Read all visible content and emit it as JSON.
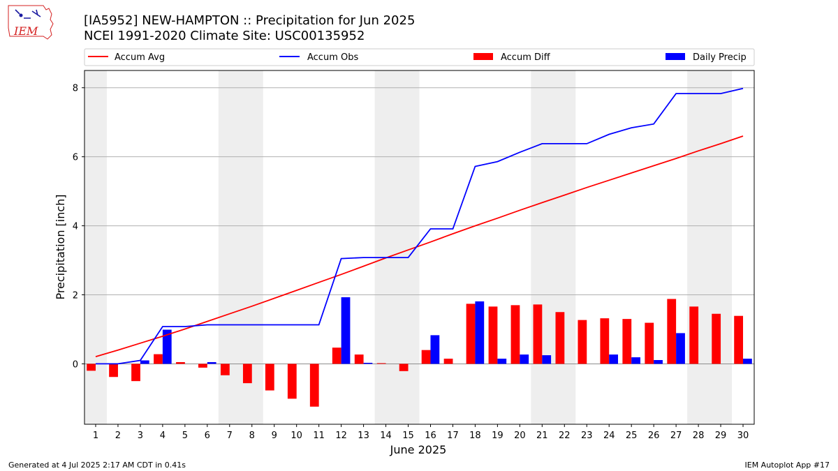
{
  "header": {
    "title_line1": "[IA5952] NEW-HAMPTON :: Precipitation for Jun 2025",
    "title_line2": "NCEI 1991-2020 Climate Site: USC00135952"
  },
  "logo": {
    "text": "IEM"
  },
  "footer": {
    "generated": "Generated at 4 Jul 2025 2:17 AM CDT in 0.41s",
    "app": "IEM Autoplot App #17"
  },
  "colors": {
    "accum_avg": "#ff0000",
    "accum_obs": "#0000ff",
    "accum_diff": "#ff0000",
    "daily_precip": "#0000ff",
    "weekend_band": "#eeeeee",
    "grid": "#b0b0b0"
  },
  "chart_data": {
    "type": "bar",
    "xlabel": "June 2025",
    "ylabel": "Precipitation [inch]",
    "x": [
      1,
      2,
      3,
      4,
      5,
      6,
      7,
      8,
      9,
      10,
      11,
      12,
      13,
      14,
      15,
      16,
      17,
      18,
      19,
      20,
      21,
      22,
      23,
      24,
      25,
      26,
      27,
      28,
      29,
      30
    ],
    "xlim": [
      0.5,
      30.5
    ],
    "ylim": [
      -1.75,
      8.5
    ],
    "yticks": [
      0,
      2,
      4,
      6,
      8
    ],
    "grid": "y",
    "legend_placement": "top",
    "weekend_bands": [
      [
        0.5,
        1.5
      ],
      [
        6.5,
        8.5
      ],
      [
        13.5,
        15.5
      ],
      [
        20.5,
        22.5
      ],
      [
        27.5,
        29.5
      ]
    ],
    "series": [
      {
        "name": "Accum Avg",
        "kind": "line",
        "values": [
          0.21,
          0.4,
          0.6,
          0.8,
          1.01,
          1.23,
          1.45,
          1.67,
          1.9,
          2.13,
          2.36,
          2.59,
          2.83,
          3.07,
          3.3,
          3.53,
          3.77,
          4.0,
          4.22,
          4.45,
          4.67,
          4.89,
          5.11,
          5.32,
          5.53,
          5.74,
          5.95,
          6.17,
          6.38,
          6.6
        ]
      },
      {
        "name": "Accum Obs",
        "kind": "line",
        "values": [
          0.0,
          0.0,
          0.1,
          1.08,
          1.08,
          1.13,
          1.13,
          1.13,
          1.13,
          1.13,
          1.13,
          3.05,
          3.08,
          3.08,
          3.08,
          3.91,
          3.91,
          5.72,
          5.86,
          6.13,
          6.38,
          6.38,
          6.38,
          6.65,
          6.84,
          6.95,
          7.83,
          7.83,
          7.83,
          7.98
        ]
      },
      {
        "name": "Accum Diff",
        "kind": "bar",
        "values": [
          -0.2,
          -0.38,
          -0.5,
          0.28,
          0.05,
          -0.11,
          -0.33,
          -0.56,
          -0.77,
          -1.01,
          -1.24,
          0.47,
          0.27,
          0.02,
          -0.21,
          0.4,
          0.15,
          1.74,
          1.66,
          1.7,
          1.72,
          1.5,
          1.27,
          1.32,
          1.3,
          1.19,
          1.88,
          1.66,
          1.45,
          1.39
        ]
      },
      {
        "name": "Daily Precip",
        "kind": "bar",
        "values": [
          0.0,
          0.0,
          0.1,
          0.99,
          0.0,
          0.05,
          0.0,
          0.0,
          0.0,
          0.0,
          0.0,
          1.93,
          0.03,
          0.0,
          0.0,
          0.83,
          0.0,
          1.81,
          0.15,
          0.27,
          0.25,
          0.0,
          0.0,
          0.27,
          0.19,
          0.11,
          0.89,
          0.0,
          0.0,
          0.15
        ]
      }
    ]
  }
}
